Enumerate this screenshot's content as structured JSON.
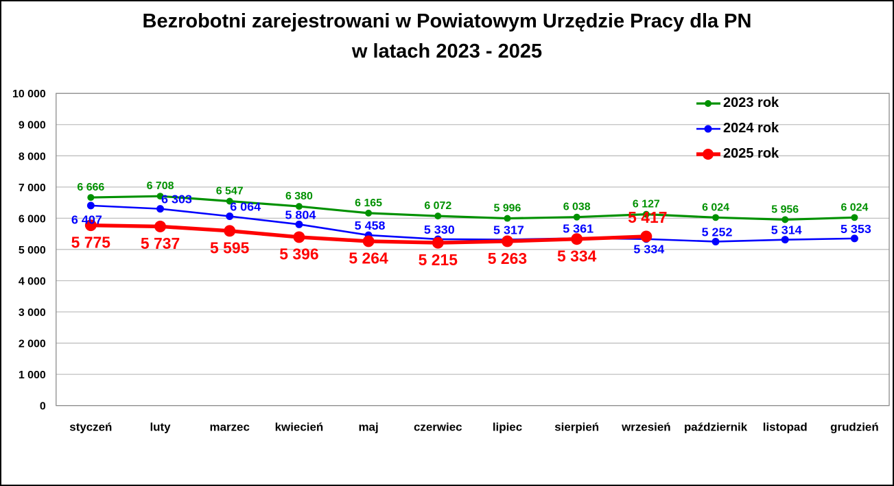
{
  "title": {
    "line1": "Bezrobotni zarejestrowani w Powiatowym Urzędzie Pracy dla PN",
    "line2": "w latach 2023 - 2025"
  },
  "chart_data": {
    "type": "line",
    "title": "Bezrobotni zarejestrowani w Powiatowym Urzędzie Pracy dla PN w latach 2023 - 2025",
    "categories": [
      "styczeń",
      "luty",
      "marzec",
      "kwiecień",
      "maj",
      "czerwiec",
      "lipiec",
      "sierpień",
      "wrzesień",
      "październik",
      "listopad",
      "grudzień"
    ],
    "series": [
      {
        "name": "2023 rok",
        "color": "#009100",
        "values": [
          6666,
          6708,
          6547,
          6380,
          6165,
          6072,
          5996,
          6038,
          6127,
          6024,
          5956,
          6024
        ]
      },
      {
        "name": "2024 rok",
        "color": "#0000FE",
        "values": [
          6407,
          6303,
          6064,
          5804,
          5458,
          5330,
          5317,
          5361,
          5334,
          5252,
          5314,
          5353
        ]
      },
      {
        "name": "2025 rok",
        "color": "#FE0000",
        "values": [
          5775,
          5737,
          5595,
          5396,
          5264,
          5215,
          5263,
          5334,
          5417
        ]
      }
    ],
    "xlabel": "",
    "ylabel": "",
    "ylim": [
      0,
      10000
    ],
    "ytick_interval": 1000,
    "ytick_labels": [
      "0",
      "1 000",
      "2 000",
      "3 000",
      "4 000",
      "5 000",
      "6 000",
      "7 000",
      "8 000",
      "9 000",
      "10 000"
    ],
    "grid": true,
    "legend_position": "top-right-inside",
    "data_labels": true,
    "number_format": "space thousands separator",
    "colors": {
      "gridline": "#BFBFBF",
      "plot_border": "#8C8C8C",
      "axis_text": "#000000",
      "title_text": "#000000"
    }
  }
}
